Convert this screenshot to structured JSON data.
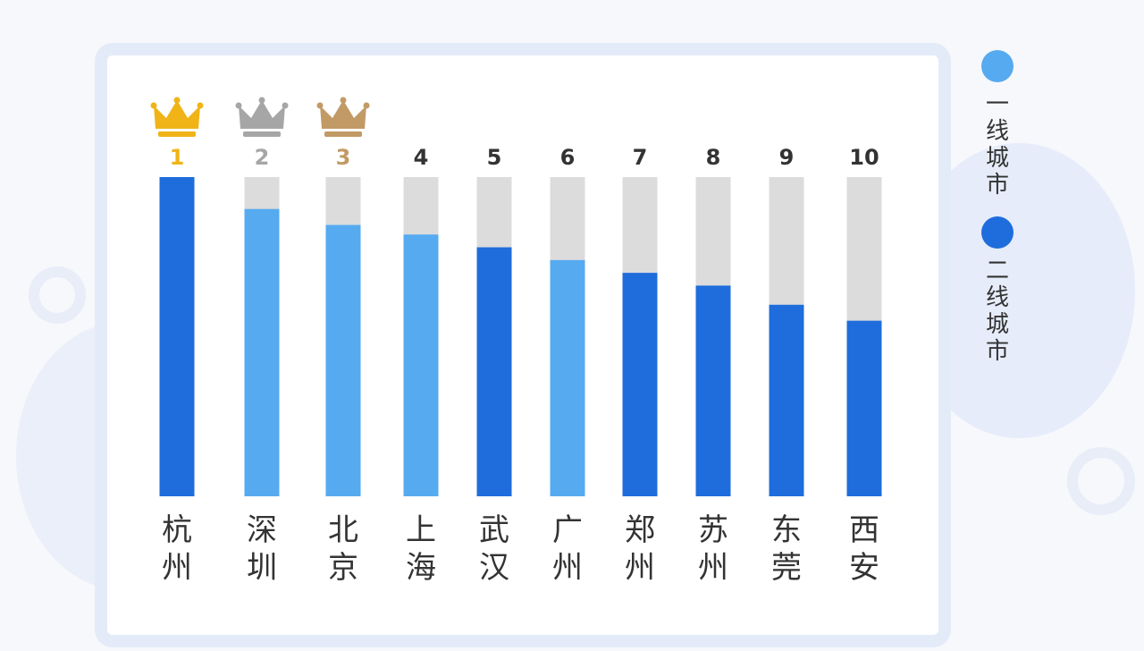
{
  "chart_data": {
    "type": "bar",
    "categories": [
      "杭州",
      "深圳",
      "北京",
      "上海",
      "武汉",
      "广州",
      "郑州",
      "苏州",
      "东莞",
      "西安"
    ],
    "ranks": [
      "1",
      "2",
      "3",
      "4",
      "5",
      "6",
      "7",
      "8",
      "9",
      "10"
    ],
    "values": [
      100,
      90,
      85,
      82,
      78,
      74,
      70,
      66,
      60,
      55
    ],
    "groups": [
      "二线城市",
      "一线城市",
      "一线城市",
      "一线城市",
      "二线城市",
      "一线城市",
      "二线城市",
      "二线城市",
      "二线城市",
      "二线城市"
    ],
    "ylim": [
      0,
      100
    ],
    "title": "",
    "xlabel": "",
    "ylabel": "",
    "legend": {
      "placement": "right",
      "items": [
        {
          "label": "一线城市",
          "color": "#56aaf0"
        },
        {
          "label": "二线城市",
          "color": "#1f6ddc"
        }
      ]
    },
    "colors": {
      "track": "#dcdcdc",
      "rank_gold": "#f0b418",
      "rank_silver": "#a6a6a6",
      "rank_bronze": "#c29a66",
      "rank_default": "#333333"
    },
    "crown_icons": [
      "gold-crown-icon",
      "silver-crown-icon",
      "bronze-crown-icon"
    ]
  }
}
